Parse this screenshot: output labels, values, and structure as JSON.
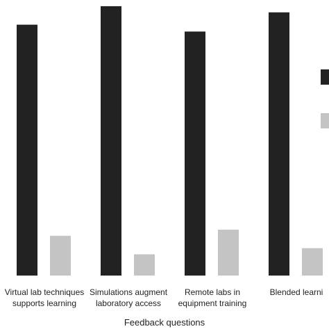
{
  "chart_data": {
    "type": "bar",
    "x_label": "Feedback questions",
    "categories": [
      "Virtual lab techniques\nsupports learning",
      "Simulations augment\nlaboratory access",
      "Remote labs in\nequipment training",
      "Blended learni"
    ],
    "series": [
      {
        "color": "#222222",
        "values": [
          366,
          393,
          356,
          384
        ]
      },
      {
        "color": "#c4c4c4",
        "values": [
          58,
          31,
          67,
          40
        ]
      }
    ],
    "ylim": [
      0,
      400
    ]
  }
}
